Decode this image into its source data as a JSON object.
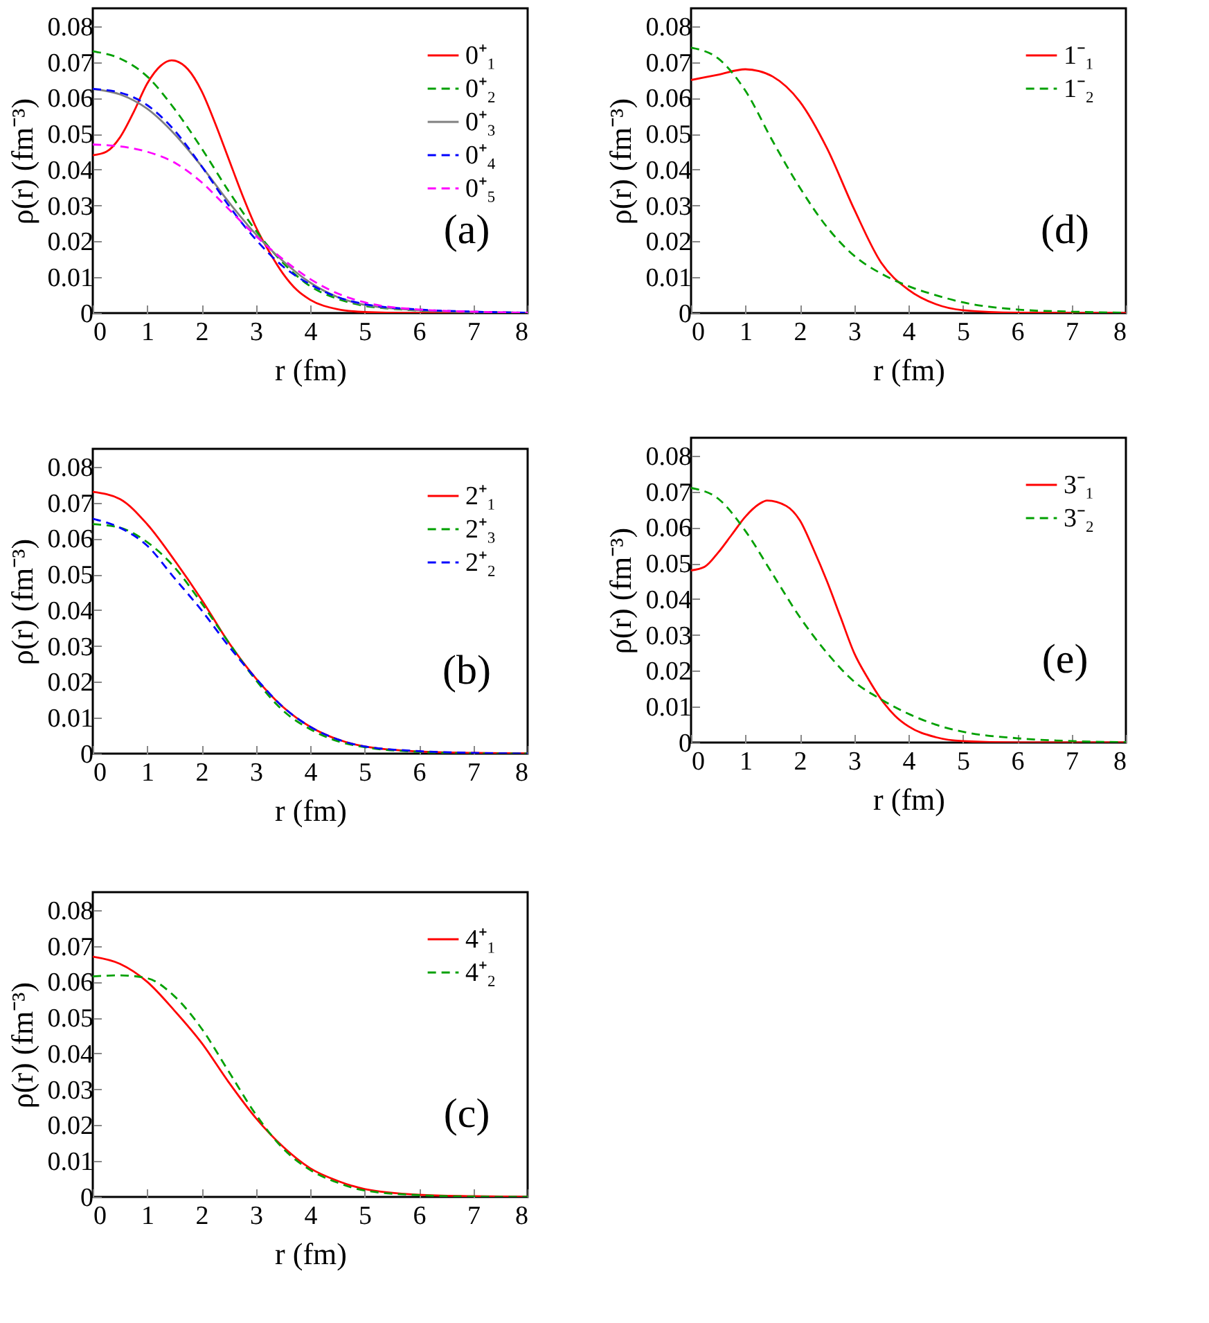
{
  "chart_data": [
    {
      "type": "line",
      "xlabel": "r (fm)",
      "ylabel": "ρ(r)  (fm⁻³)",
      "annotations": [
        "(a)"
      ],
      "xlim": [
        0,
        8
      ],
      "ylim": [
        0,
        0.085
      ],
      "xticks": [
        0,
        1,
        2,
        3,
        4,
        5,
        6,
        7,
        8
      ],
      "yticks": [
        0,
        0.01,
        0.02,
        0.03,
        0.04,
        0.05,
        0.06,
        0.07,
        0.08
      ],
      "legend": "top right",
      "series": [
        {
          "name": "0⁺₁",
          "color": "#ff0000",
          "line_style": "solid",
          "x": [
            0,
            0.25,
            0.5,
            0.75,
            1,
            1.25,
            1.45,
            1.75,
            2,
            2.25,
            2.5,
            2.75,
            3,
            3.25,
            3.5,
            3.75,
            4,
            4.5,
            5,
            6,
            7,
            8
          ],
          "values": [
            0.044,
            0.045,
            0.049,
            0.056,
            0.064,
            0.069,
            0.0705,
            0.068,
            0.062,
            0.053,
            0.043,
            0.033,
            0.024,
            0.017,
            0.011,
            0.0065,
            0.0037,
            0.0011,
            0.0003,
            0,
            0,
            0
          ]
        },
        {
          "name": "0⁺₂",
          "color": "#00a000",
          "line_style": "dashed",
          "x": [
            0,
            0.5,
            1,
            1.5,
            2,
            2.5,
            3,
            3.5,
            4,
            4.5,
            5,
            5.5,
            6,
            7,
            8
          ],
          "values": [
            0.073,
            0.071,
            0.066,
            0.057,
            0.046,
            0.034,
            0.023,
            0.014,
            0.0075,
            0.004,
            0.002,
            0.0012,
            0.0007,
            0.0003,
            0.0001
          ]
        },
        {
          "name": "0⁺₃",
          "color": "#808080",
          "line_style": "solid",
          "x": [
            0,
            0.5,
            1,
            1.5,
            2,
            2.5,
            3,
            3.5,
            4,
            4.5,
            5,
            6,
            7,
            8
          ],
          "values": [
            0.0625,
            0.061,
            0.057,
            0.05,
            0.041,
            0.031,
            0.022,
            0.0145,
            0.0085,
            0.0045,
            0.0023,
            0.0008,
            0.0003,
            0.0001
          ]
        },
        {
          "name": "0⁺₄",
          "color": "#0000ff",
          "line_style": "dashed",
          "x": [
            0,
            0.5,
            1,
            1.5,
            2,
            2.5,
            3,
            3.5,
            4,
            4.5,
            5,
            6,
            7,
            8
          ],
          "values": [
            0.0625,
            0.0615,
            0.058,
            0.051,
            0.041,
            0.03,
            0.0205,
            0.013,
            0.008,
            0.0045,
            0.0025,
            0.001,
            0.0004,
            0.0001
          ]
        },
        {
          "name": "0⁺₅",
          "color": "#ff00ff",
          "line_style": "dashed",
          "x": [
            0,
            0.5,
            1,
            1.5,
            2,
            2.5,
            3,
            3.5,
            4,
            4.5,
            5,
            6,
            7,
            8
          ],
          "values": [
            0.047,
            0.0465,
            0.045,
            0.042,
            0.0365,
            0.029,
            0.0215,
            0.015,
            0.0095,
            0.0055,
            0.003,
            0.001,
            0.0004,
            0.0001
          ]
        }
      ]
    },
    {
      "type": "line",
      "xlabel": "r (fm)",
      "ylabel": "ρ(r)  (fm⁻³)",
      "annotations": [
        "(d)"
      ],
      "xlim": [
        0,
        8
      ],
      "ylim": [
        0,
        0.085
      ],
      "xticks": [
        0,
        1,
        2,
        3,
        4,
        5,
        6,
        7,
        8
      ],
      "yticks": [
        0,
        0.01,
        0.02,
        0.03,
        0.04,
        0.05,
        0.06,
        0.07,
        0.08
      ],
      "legend": "top right",
      "series": [
        {
          "name": "1⁻₁",
          "color": "#ff0000",
          "line_style": "solid",
          "x": [
            0,
            0.5,
            1,
            1.25,
            1.5,
            2,
            2.5,
            3,
            3.5,
            4,
            4.5,
            5,
            6,
            8
          ],
          "values": [
            0.065,
            0.0665,
            0.068,
            0.0675,
            0.066,
            0.059,
            0.046,
            0.029,
            0.014,
            0.0065,
            0.0025,
            0.0008,
            0.0001,
            0
          ]
        },
        {
          "name": "1⁻₂",
          "color": "#00a000",
          "line_style": "dashed",
          "x": [
            0,
            0.5,
            1,
            1.5,
            2,
            2.5,
            3,
            3.5,
            4,
            4.5,
            5,
            6,
            7,
            8
          ],
          "values": [
            0.074,
            0.071,
            0.062,
            0.048,
            0.035,
            0.024,
            0.016,
            0.011,
            0.0075,
            0.005,
            0.003,
            0.001,
            0.0004,
            0.0001
          ]
        }
      ]
    },
    {
      "type": "line",
      "xlabel": "r (fm)",
      "ylabel": "ρ(r)  (fm⁻³)",
      "annotations": [
        "(b)"
      ],
      "xlim": [
        0,
        8
      ],
      "ylim": [
        0,
        0.085
      ],
      "xticks": [
        0,
        1,
        2,
        3,
        4,
        5,
        6,
        7,
        8
      ],
      "yticks": [
        0,
        0.01,
        0.02,
        0.03,
        0.04,
        0.05,
        0.06,
        0.07,
        0.08
      ],
      "legend": "top right",
      "series": [
        {
          "name": "2⁺₁",
          "color": "#ff0000",
          "line_style": "solid",
          "x": [
            0,
            0.5,
            1,
            1.5,
            2,
            2.5,
            3,
            3.5,
            4,
            4.5,
            5,
            6,
            7,
            8
          ],
          "values": [
            0.073,
            0.071,
            0.064,
            0.054,
            0.043,
            0.031,
            0.021,
            0.013,
            0.0075,
            0.004,
            0.002,
            0.0006,
            0.0002,
            0
          ]
        },
        {
          "name": "2⁺₃",
          "color": "#00a000",
          "line_style": "dashed",
          "x": [
            0,
            0.5,
            1,
            1.5,
            2,
            2.5,
            3,
            3.5,
            4,
            4.5,
            5,
            6,
            7,
            8
          ],
          "values": [
            0.064,
            0.063,
            0.059,
            0.052,
            0.042,
            0.031,
            0.0205,
            0.012,
            0.0068,
            0.0035,
            0.0018,
            0.0005,
            0.0001,
            0
          ]
        },
        {
          "name": "2⁺₂",
          "color": "#0000ff",
          "line_style": "dashed",
          "x": [
            0,
            0.5,
            1,
            1.5,
            2,
            2.5,
            3,
            3.5,
            4,
            4.5,
            5,
            6,
            7,
            8
          ],
          "values": [
            0.0655,
            0.063,
            0.058,
            0.049,
            0.04,
            0.03,
            0.021,
            0.013,
            0.0075,
            0.004,
            0.002,
            0.0007,
            0.0002,
            0
          ]
        }
      ]
    },
    {
      "type": "line",
      "xlabel": "r (fm)",
      "ylabel": "ρ(r)  (fm⁻³)",
      "annotations": [
        "(e)"
      ],
      "xlim": [
        0,
        8
      ],
      "ylim": [
        0,
        0.085
      ],
      "xticks": [
        0,
        1,
        2,
        3,
        4,
        5,
        6,
        7,
        8
      ],
      "yticks": [
        0,
        0.01,
        0.02,
        0.03,
        0.04,
        0.05,
        0.06,
        0.07,
        0.08
      ],
      "legend": "top right",
      "series": [
        {
          "name": "3⁻₁",
          "color": "#ff0000",
          "line_style": "solid",
          "x": [
            0,
            0.25,
            0.5,
            0.75,
            1,
            1.25,
            1.4,
            1.75,
            2,
            2.25,
            2.5,
            2.75,
            3,
            3.25,
            3.5,
            3.75,
            4,
            4.5,
            5,
            6,
            8
          ],
          "values": [
            0.048,
            0.049,
            0.053,
            0.058,
            0.063,
            0.0665,
            0.0675,
            0.066,
            0.062,
            0.054,
            0.045,
            0.035,
            0.025,
            0.018,
            0.012,
            0.0075,
            0.0045,
            0.0015,
            0.0004,
            0,
            0
          ]
        },
        {
          "name": "3⁻₂",
          "color": "#00a000",
          "line_style": "dashed",
          "x": [
            0,
            0.5,
            1,
            1.5,
            2,
            2.5,
            3,
            3.5,
            4,
            4.5,
            5,
            6,
            7,
            8
          ],
          "values": [
            0.071,
            0.068,
            0.059,
            0.047,
            0.035,
            0.025,
            0.017,
            0.012,
            0.008,
            0.005,
            0.003,
            0.0012,
            0.0004,
            0.0001
          ]
        }
      ]
    },
    {
      "type": "line",
      "xlabel": "r (fm)",
      "ylabel": "ρ(r)  (fm⁻³)",
      "annotations": [
        "(c)"
      ],
      "xlim": [
        0,
        8
      ],
      "ylim": [
        0,
        0.085
      ],
      "xticks": [
        0,
        1,
        2,
        3,
        4,
        5,
        6,
        7,
        8
      ],
      "yticks": [
        0,
        0.01,
        0.02,
        0.03,
        0.04,
        0.05,
        0.06,
        0.07,
        0.08
      ],
      "legend": "top right",
      "series": [
        {
          "name": "4⁺₁",
          "color": "#ff0000",
          "line_style": "solid",
          "x": [
            0,
            0.5,
            1,
            1.5,
            2,
            2.5,
            3,
            3.5,
            4,
            4.5,
            5,
            6,
            7,
            8
          ],
          "values": [
            0.067,
            0.065,
            0.06,
            0.052,
            0.043,
            0.032,
            0.022,
            0.014,
            0.008,
            0.0045,
            0.0022,
            0.0006,
            0.0002,
            0
          ]
        },
        {
          "name": "4⁺₂",
          "color": "#00a000",
          "line_style": "dashed",
          "x": [
            0,
            0.5,
            1,
            1.5,
            2,
            2.5,
            3,
            3.5,
            4,
            4.5,
            5,
            6,
            7,
            8
          ],
          "values": [
            0.0615,
            0.0618,
            0.061,
            0.056,
            0.047,
            0.035,
            0.023,
            0.0135,
            0.0075,
            0.004,
            0.0018,
            0.0005,
            0.0001,
            0
          ]
        }
      ]
    }
  ]
}
